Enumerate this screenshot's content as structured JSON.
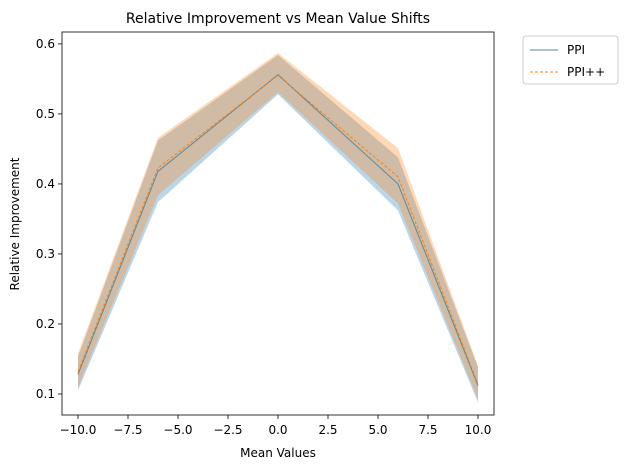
{
  "chart_data": {
    "type": "line",
    "title": "Relative Improvement vs Mean Value Shifts",
    "xlabel": "Mean Values",
    "ylabel": "Relative Improvement",
    "x": [
      -10,
      -6,
      0,
      6,
      10
    ],
    "xlim": [
      -10.8,
      10.8
    ],
    "ylim": [
      0.07,
      0.617
    ],
    "xticks": [
      -10,
      -7.5,
      -5,
      -2.5,
      0,
      2.5,
      5,
      7.5,
      10
    ],
    "xtick_labels": [
      "−10.0",
      "−7.5",
      "−5.0",
      "−2.5",
      "0.0",
      "2.5",
      "5.0",
      "7.5",
      "10.0"
    ],
    "yticks": [
      0.1,
      0.2,
      0.3,
      0.4,
      0.5,
      0.6
    ],
    "ytick_labels": [
      "0.1",
      "0.2",
      "0.3",
      "0.4",
      "0.5",
      "0.6"
    ],
    "grid": false,
    "legend_position": "outside-top-right",
    "series": [
      {
        "name": "PPI",
        "color": "#1f77b4",
        "line_color": "#5a8a9a",
        "line_style": "solid",
        "values": [
          0.128,
          0.418,
          0.556,
          0.4,
          0.112
        ],
        "band_lower": [
          0.105,
          0.374,
          0.528,
          0.362,
          0.088
        ],
        "band_upper": [
          0.153,
          0.462,
          0.584,
          0.438,
          0.138
        ]
      },
      {
        "name": "PPI++",
        "color": "#ff7f0e",
        "line_color": "#ff7f0e",
        "line_style": "dashed",
        "values": [
          0.132,
          0.423,
          0.555,
          0.41,
          0.114
        ],
        "band_lower": [
          0.11,
          0.384,
          0.531,
          0.372,
          0.092
        ],
        "band_upper": [
          0.158,
          0.466,
          0.587,
          0.451,
          0.14
        ]
      }
    ]
  }
}
